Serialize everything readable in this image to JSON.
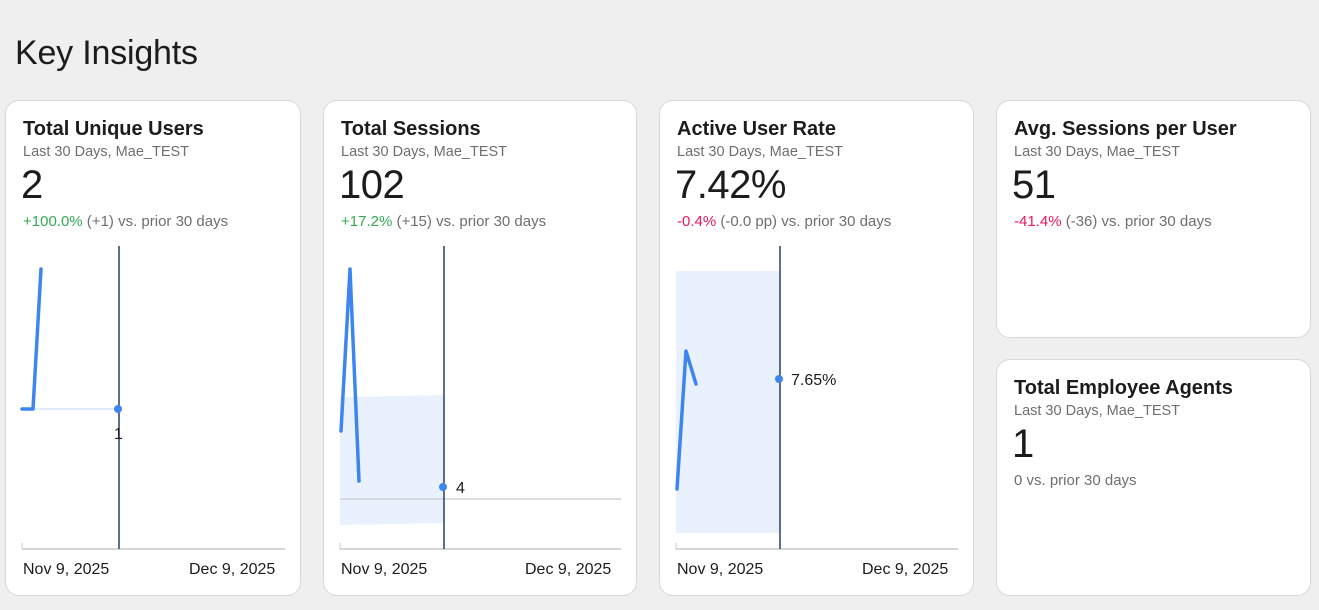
{
  "page": {
    "title": "Key Insights"
  },
  "colors": {
    "line": "#3d86f0",
    "band": "#e9f1fd",
    "marker": "#2a3f66",
    "positive": "#34a853",
    "negative": "#e8185c"
  },
  "cards": {
    "unique_users": {
      "title": "Total Unique Users",
      "subtitle": "Last 30 Days, Mae_TEST",
      "value": "2",
      "change_pct": "+100.0%",
      "change_rest": " (+1) vs. prior 30 days",
      "marker_label": "1",
      "axis_start": "Nov 9, 2025",
      "axis_end": "Dec 9, 2025"
    },
    "sessions": {
      "title": "Total Sessions",
      "subtitle": "Last 30 Days, Mae_TEST",
      "value": "102",
      "change_pct": "+17.2%",
      "change_rest": " (+15) vs. prior 30 days",
      "marker_label": "4",
      "axis_start": "Nov 9, 2025",
      "axis_end": "Dec 9, 2025"
    },
    "active_rate": {
      "title": "Active User Rate",
      "subtitle": "Last 30 Days, Mae_TEST",
      "value": "7.42%",
      "change_pct": "-0.4%",
      "change_rest": " (-0.0 pp) vs. prior 30 days",
      "marker_label": "7.65%",
      "axis_start": "Nov 9, 2025",
      "axis_end": "Dec 9, 2025"
    },
    "avg_sessions": {
      "title": "Avg. Sessions per User",
      "subtitle": "Last 30 Days, Mae_TEST",
      "value": "51",
      "change_pct": "-41.4%",
      "change_rest": " (-36) vs. prior 30 days"
    },
    "employee_agents": {
      "title": "Total Employee Agents",
      "subtitle": "Last 30 Days, Mae_TEST",
      "value": "1",
      "change_rest": "0 vs. prior 30 days"
    }
  }
}
